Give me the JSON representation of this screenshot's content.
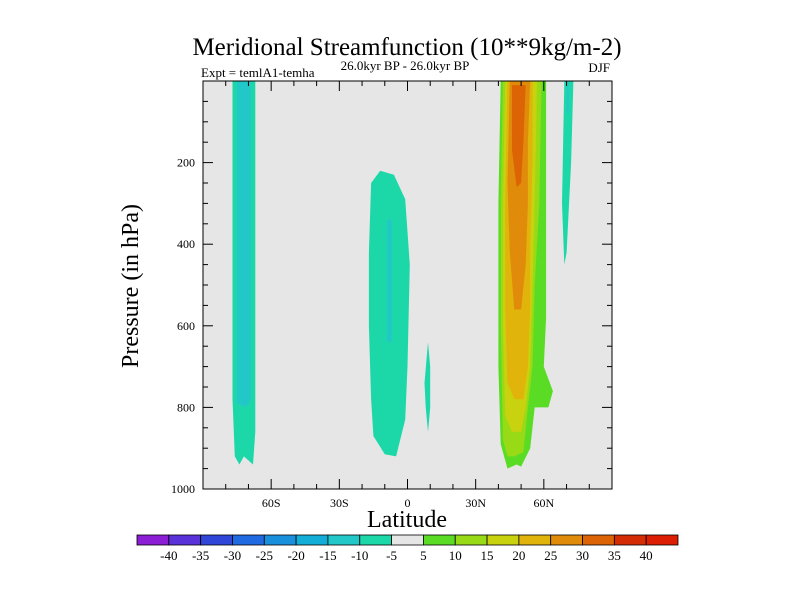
{
  "chart_data": {
    "type": "contour",
    "title": "Meridional Streamfunction (10**9kg/m-2)",
    "left_label": "Expt = temlA1-temha",
    "center_label": "26.0kyr BP - 26.0kyr BP",
    "right_label": "DJF",
    "xlabel": "Latitude",
    "ylabel": "Pressure (in hPa)",
    "xlim": [
      -90,
      90
    ],
    "ylim": [
      1000,
      0
    ],
    "x_ticks": [
      {
        "value": -60,
        "label": "60S"
      },
      {
        "value": -30,
        "label": "30S"
      },
      {
        "value": 0,
        "label": "0"
      },
      {
        "value": 30,
        "label": "30N"
      },
      {
        "value": 60,
        "label": "60N"
      }
    ],
    "y_ticks": [
      {
        "value": 200,
        "label": "200"
      },
      {
        "value": 400,
        "label": "400"
      },
      {
        "value": 600,
        "label": "600"
      },
      {
        "value": 800,
        "label": "800"
      },
      {
        "value": 1000,
        "label": "1000"
      }
    ],
    "background_color": "#e6e6e6",
    "colorbar": {
      "levels": [
        -40,
        -35,
        -30,
        -25,
        -20,
        -15,
        -10,
        -5,
        5,
        10,
        15,
        20,
        25,
        30,
        35,
        40
      ],
      "labels": [
        "-40",
        "-35",
        "-30",
        "-25",
        "-20",
        "-15",
        "-10",
        "-5",
        "5",
        "10",
        "15",
        "20",
        "25",
        "30",
        "35",
        "40"
      ],
      "colors": [
        "#8c1fd6",
        "#5a32d9",
        "#2f46d8",
        "#1f6ae0",
        "#1890dc",
        "#12aed8",
        "#22c8c8",
        "#1cd8a8",
        "#e6e6e6",
        "#5adc24",
        "#98da16",
        "#c8d20e",
        "#e0b40a",
        "#e08c0a",
        "#dc6404",
        "#d42c04",
        "#dc1e04"
      ]
    },
    "features": [
      {
        "name": "negative cell 65-75S",
        "color": "#1cd8a8",
        "points": [
          [
            -77,
            0
          ],
          [
            -67,
            0
          ],
          [
            -67,
            860
          ],
          [
            -68,
            940
          ],
          [
            -72,
            920
          ],
          [
            -74,
            940
          ],
          [
            -76,
            920
          ],
          [
            -77,
            780
          ]
        ]
      },
      {
        "name": "negative core 65-75S",
        "color": "#22c8c8",
        "points": [
          [
            -75,
            0
          ],
          [
            -69,
            0
          ],
          [
            -69,
            780
          ],
          [
            -71,
            800
          ],
          [
            -75,
            790
          ]
        ]
      },
      {
        "name": "negative cell 5-20S",
        "color": "#1cd8a8",
        "points": [
          [
            -16,
            250
          ],
          [
            -12,
            220
          ],
          [
            -6,
            230
          ],
          [
            -1,
            290
          ],
          [
            1,
            450
          ],
          [
            0,
            700
          ],
          [
            -1,
            830
          ],
          [
            -5,
            920
          ],
          [
            -10,
            915
          ],
          [
            -15,
            870
          ],
          [
            -16,
            780
          ],
          [
            -17,
            600
          ],
          [
            -17,
            420
          ]
        ]
      },
      {
        "name": "negative core 5-20S",
        "color": "#22c8c8",
        "points": [
          [
            -9,
            340
          ],
          [
            -7,
            340
          ],
          [
            -7,
            640
          ],
          [
            -9,
            640
          ]
        ]
      },
      {
        "name": "negative sliver 8N",
        "color": "#1cd8a8",
        "points": [
          [
            9,
            640
          ],
          [
            10,
            700
          ],
          [
            10,
            800
          ],
          [
            9,
            860
          ],
          [
            8,
            800
          ],
          [
            7.5,
            740
          ]
        ]
      },
      {
        "name": "positive cell 5 level",
        "color": "#5adc24",
        "points": [
          [
            41,
            0
          ],
          [
            61,
            0
          ],
          [
            61,
            580
          ],
          [
            60,
            700
          ],
          [
            64,
            760
          ],
          [
            62,
            800
          ],
          [
            56,
            800
          ],
          [
            54,
            900
          ],
          [
            50,
            945
          ],
          [
            48,
            940
          ],
          [
            44,
            950
          ],
          [
            41,
            890
          ],
          [
            40,
            700
          ],
          [
            40,
            300
          ]
        ]
      },
      {
        "name": "positive cell 10 level",
        "color": "#98da16",
        "points": [
          [
            42,
            0
          ],
          [
            59,
            0
          ],
          [
            58,
            300
          ],
          [
            56,
            500
          ],
          [
            55,
            700
          ],
          [
            53,
            800
          ],
          [
            51,
            910
          ],
          [
            47,
            920
          ],
          [
            44,
            920
          ],
          [
            42,
            880
          ],
          [
            41,
            600
          ],
          [
            41,
            300
          ]
        ]
      },
      {
        "name": "positive cell 15 level",
        "color": "#c8d20e",
        "points": [
          [
            43,
            0
          ],
          [
            57,
            0
          ],
          [
            56,
            300
          ],
          [
            55,
            500
          ],
          [
            54,
            700
          ],
          [
            52,
            800
          ],
          [
            50,
            860
          ],
          [
            46,
            860
          ],
          [
            43,
            820
          ],
          [
            42,
            600
          ],
          [
            42,
            300
          ]
        ]
      },
      {
        "name": "positive cell 20 level",
        "color": "#e0b40a",
        "points": [
          [
            44,
            0
          ],
          [
            55,
            0
          ],
          [
            55,
            200
          ],
          [
            54,
            400
          ],
          [
            54,
            550
          ],
          [
            53,
            700
          ],
          [
            51,
            780
          ],
          [
            47,
            780
          ],
          [
            44,
            740
          ],
          [
            43,
            560
          ],
          [
            43,
            300
          ]
        ]
      },
      {
        "name": "positive cell 25 level",
        "color": "#e08c0a",
        "points": [
          [
            45,
            0
          ],
          [
            54,
            0
          ],
          [
            53,
            150
          ],
          [
            53,
            300
          ],
          [
            52,
            450
          ],
          [
            50,
            560
          ],
          [
            47,
            560
          ],
          [
            45,
            420
          ],
          [
            44,
            250
          ]
        ]
      },
      {
        "name": "positive cell 30 level",
        "color": "#dc6404",
        "points": [
          [
            46,
            10
          ],
          [
            52,
            10
          ],
          [
            51,
            150
          ],
          [
            50,
            250
          ],
          [
            48,
            260
          ],
          [
            46,
            170
          ]
        ]
      },
      {
        "name": "negative cell 65N",
        "color": "#1cd8a8",
        "points": [
          [
            69,
            0
          ],
          [
            73,
            0
          ],
          [
            72,
            200
          ],
          [
            70,
            420
          ],
          [
            69,
            450
          ],
          [
            68,
            300
          ]
        ]
      },
      {
        "name": "negative core 65N",
        "color": "#22c8c8",
        "points": [
          [
            70,
            0
          ],
          [
            71,
            0
          ],
          [
            71,
            80
          ],
          [
            70,
            80
          ]
        ]
      }
    ]
  }
}
